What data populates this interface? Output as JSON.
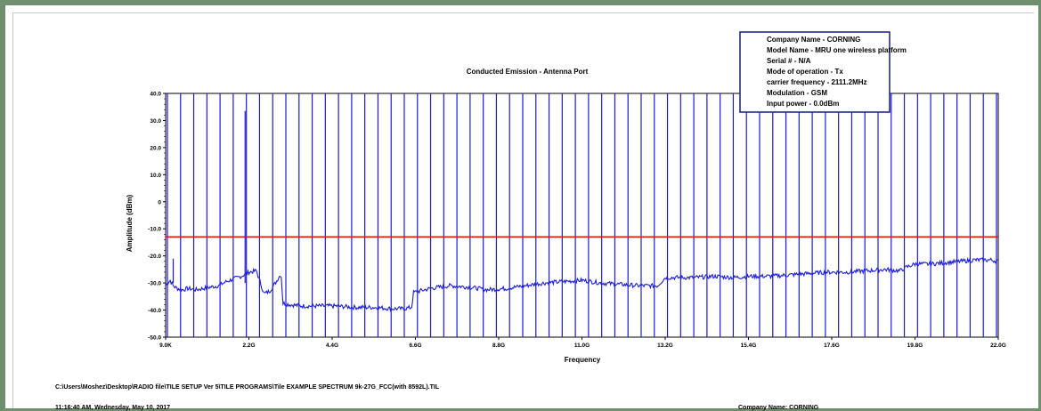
{
  "chart_data": {
    "type": "line",
    "title": "Conducted Emission - Antenna Port",
    "xlabel": "Frequency",
    "ylabel": "Amplitude (dBm)",
    "xlim": [
      9e-06,
      22.0
    ],
    "ylim": [
      -50,
      40
    ],
    "x_tick_labels": [
      "9.0K",
      "2.2G",
      "4.4G",
      "6.6G",
      "8.8G",
      "11.0G",
      "13.2G",
      "15.4G",
      "17.6G",
      "19.8G",
      "22.0G"
    ],
    "y_tick_labels": [
      "40.0",
      "30.0",
      "20.0",
      "10.0",
      "0",
      "-10.0",
      "-20.0",
      "-30.0",
      "-40.0",
      "-50.0"
    ],
    "y_ticks": [
      40,
      30,
      20,
      10,
      0,
      -10,
      -20,
      -30,
      -40,
      -50
    ],
    "limit_line": {
      "value": -13,
      "color": "#ee1111"
    },
    "series_color": "#1a1ae6",
    "series": [
      {
        "values_x_GHz": [
          0.0,
          0.05,
          0.12,
          0.2,
          0.3,
          0.45,
          0.6,
          0.8,
          1.0,
          1.2,
          1.4,
          1.6,
          1.8,
          2.0,
          2.2,
          2.4,
          2.6,
          2.75,
          2.9,
          3.05,
          3.1,
          3.3,
          3.6,
          4.0,
          4.5,
          5.0,
          5.5,
          6.0,
          6.3,
          6.5,
          6.55,
          6.7,
          7.0,
          7.5,
          8.0,
          8.5,
          9.0,
          9.5,
          10.0,
          10.5,
          11.0,
          11.5,
          12.0,
          12.5,
          13.0,
          13.2,
          13.4,
          14.0,
          14.5,
          15.0,
          15.5,
          16.0,
          16.5,
          17.0,
          17.5,
          18.0,
          18.5,
          19.0,
          19.4,
          19.6,
          19.8,
          20.2,
          20.6,
          21.0,
          21.4,
          21.8,
          22.0
        ],
        "values_y_dBm": [
          -31,
          -30,
          -29,
          -31,
          -32,
          -32.5,
          -32,
          -32.5,
          -32,
          -31.5,
          -31,
          -29.5,
          -28.5,
          -27.5,
          -26,
          -25.5,
          -34,
          -33,
          -30,
          -26.5,
          -37.5,
          -38,
          -38.5,
          -38.5,
          -38.5,
          -39,
          -39,
          -39.5,
          -39.5,
          -39,
          -33.5,
          -33,
          -32,
          -31,
          -31.5,
          -32.5,
          -32,
          -31,
          -30,
          -29.5,
          -29,
          -30,
          -30.5,
          -31,
          -31,
          -28,
          -28,
          -28,
          -27.5,
          -28,
          -27.5,
          -27.5,
          -27,
          -26.5,
          -26,
          -26,
          -25.5,
          -25,
          -25.5,
          -24,
          -23,
          -23,
          -22.5,
          -22,
          -21.5,
          -21.5,
          -22
        ]
      }
    ],
    "spurs": [
      {
        "x_GHz": 0.2,
        "y_dBm": -21
      },
      {
        "x_GHz": 2.1,
        "y_dBm": 33.5
      }
    ],
    "vertical_markers_count": 64,
    "vertical_markers_color": "#1a1ae6"
  },
  "info_box": {
    "lines": [
      "Company Name - CORNING",
      "Model Name - MRU one wireless platform",
      "Serial # - N/A",
      "Mode of operation - Tx",
      "carrier frequency - 2111.2MHz",
      "Modulation - GSM",
      "Input power - 0.0dBm"
    ],
    "border_color": "#1f2d87"
  },
  "footer": {
    "file_path": "C:\\Users\\Moshez\\Desktop\\RADIO file\\TILE SETUP Ver 5\\TILE PROGRAMS\\Tile EXAMPLE SPECTRUM 9k-27G_FCC(with 8592L).TIL",
    "timestamp": "11:16:40 AM, Wednesday, May 10, 2017",
    "company": "Company Name: CORNING"
  }
}
